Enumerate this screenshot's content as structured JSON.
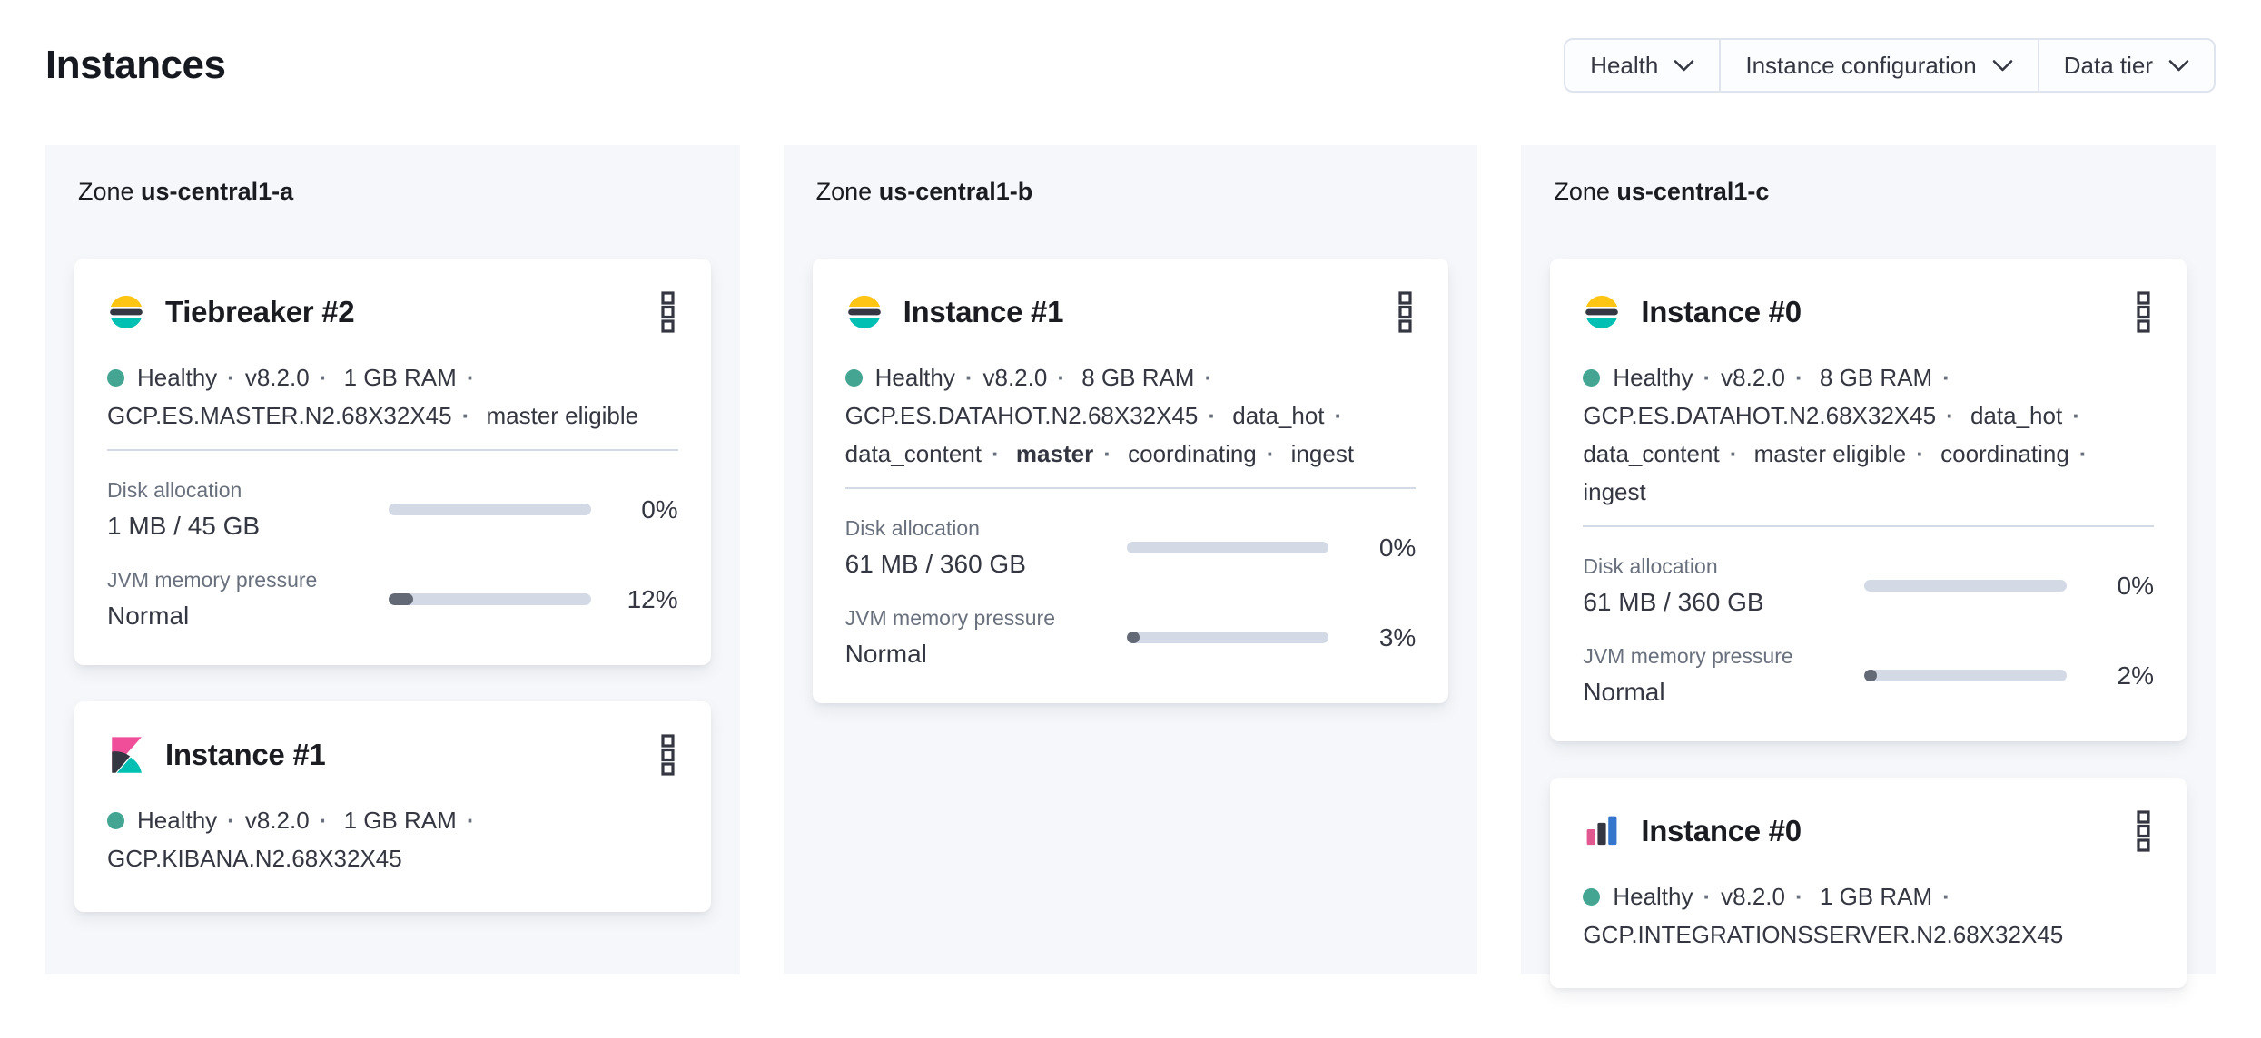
{
  "page": {
    "title": "Instances"
  },
  "filters": [
    {
      "label": "Health"
    },
    {
      "label": "Instance configuration"
    },
    {
      "label": "Data tier"
    }
  ],
  "colors": {
    "es_yellow": "#FEC514",
    "brand_dark": "#343741",
    "teal": "#00BFB3",
    "kibana_pink": "#F04E98",
    "obs_pink": "#E0588F",
    "obs_blue": "#3476CC",
    "health_dot": "#44A593",
    "progress_track": "#D3DAE6",
    "progress_fill": "#636A76",
    "panel_bg": "#F5F7FA"
  },
  "zones": [
    {
      "label_prefix": "Zone",
      "name": "us-central1-a",
      "cards": [
        {
          "logo": "elasticsearch",
          "title": "Tiebreaker #2",
          "status": "Healthy",
          "meta": [
            "v8.2.0",
            "1 GB RAM",
            "GCP.ES.MASTER.N2.68X32X45",
            "master eligible"
          ],
          "metrics": [
            {
              "label": "Disk allocation",
              "value": "1 MB / 45 GB",
              "percent": "0%",
              "fill_pct": 0
            },
            {
              "label": "JVM memory pressure",
              "value": "Normal",
              "percent": "12%",
              "fill_pct": 12
            }
          ]
        },
        {
          "logo": "kibana",
          "title": "Instance #1",
          "status": "Healthy",
          "meta": [
            "v8.2.0",
            "1 GB RAM",
            "GCP.KIBANA.N2.68X32X45"
          ],
          "metrics": []
        }
      ]
    },
    {
      "label_prefix": "Zone",
      "name": "us-central1-b",
      "cards": [
        {
          "logo": "elasticsearch",
          "title": "Instance #1",
          "status": "Healthy",
          "meta": [
            "v8.2.0",
            "8 GB RAM",
            "GCP.ES.DATAHOT.N2.68X32X45",
            "data_hot",
            "data_content",
            {
              "text": "master",
              "bold": true
            },
            "coordinating",
            "ingest"
          ],
          "metrics": [
            {
              "label": "Disk allocation",
              "value": "61 MB / 360 GB",
              "percent": "0%",
              "fill_pct": 0
            },
            {
              "label": "JVM memory pressure",
              "value": "Normal",
              "percent": "3%",
              "fill_pct": 3
            }
          ]
        }
      ]
    },
    {
      "label_prefix": "Zone",
      "name": "us-central1-c",
      "cards": [
        {
          "logo": "elasticsearch",
          "title": "Instance #0",
          "status": "Healthy",
          "meta": [
            "v8.2.0",
            "8 GB RAM",
            "GCP.ES.DATAHOT.N2.68X32X45",
            "data_hot",
            "data_content",
            "master eligible",
            "coordinating",
            "ingest"
          ],
          "metrics": [
            {
              "label": "Disk allocation",
              "value": "61 MB / 360 GB",
              "percent": "0%",
              "fill_pct": 0
            },
            {
              "label": "JVM memory pressure",
              "value": "Normal",
              "percent": "2%",
              "fill_pct": 2
            }
          ]
        },
        {
          "logo": "integrations_server",
          "title": "Instance #0",
          "status": "Healthy",
          "meta": [
            "v8.2.0",
            "1 GB RAM",
            "GCP.INTEGRATIONSSERVER.N2.68X32X45"
          ],
          "metrics": []
        }
      ]
    }
  ]
}
